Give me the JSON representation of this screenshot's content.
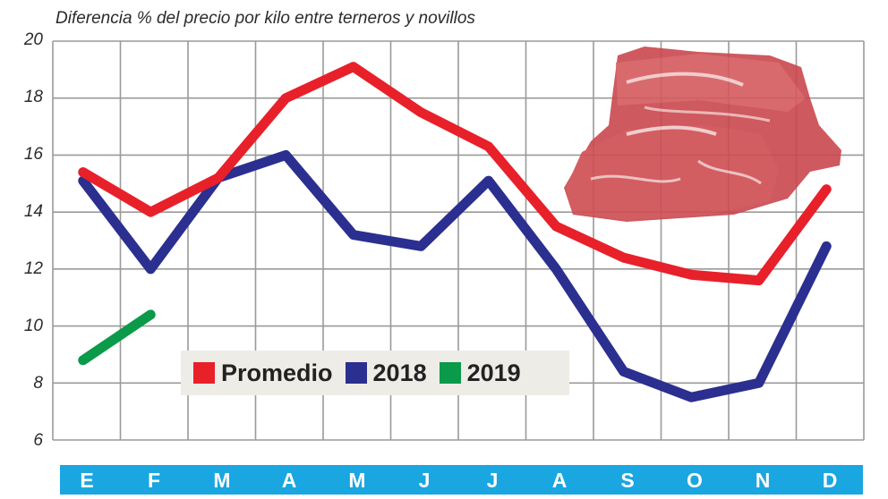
{
  "chart_data": {
    "type": "line",
    "title": "Diferencia % del precio por kilo entre terneros y novillos",
    "xlabel": "",
    "ylabel": "",
    "categories": [
      "E",
      "F",
      "M",
      "A",
      "M",
      "J",
      "J",
      "A",
      "S",
      "O",
      "N",
      "D"
    ],
    "yticks": [
      "20",
      "18",
      "16",
      "14",
      "12",
      "10",
      "8",
      "6"
    ],
    "ylim": [
      6,
      20
    ],
    "grid": true,
    "legend_position": "inside-bottom-center",
    "series": [
      {
        "name": "Promedio",
        "color": "#e8202a",
        "values": [
          15.4,
          14.0,
          15.2,
          18.0,
          19.1,
          17.5,
          16.3,
          13.5,
          12.4,
          11.8,
          11.6,
          14.8
        ]
      },
      {
        "name": "2018",
        "color": "#2b2f8f",
        "values": [
          15.1,
          12.0,
          15.2,
          16.0,
          13.2,
          12.8,
          15.1,
          12.0,
          8.4,
          7.5,
          8.0,
          12.8
        ]
      },
      {
        "name": "2019",
        "color": "#0a9a4a",
        "values": [
          8.8,
          10.4,
          null,
          null,
          null,
          null,
          null,
          null,
          null,
          null,
          null,
          null
        ]
      }
    ]
  },
  "header": {
    "title": "Diferencia % del precio por kilo entre terneros y novillos"
  },
  "legend": {
    "items": [
      {
        "label": "Promedio",
        "color": "#e8202a"
      },
      {
        "label": "2018",
        "color": "#2b2f8f"
      },
      {
        "label": "2019",
        "color": "#0a9a4a"
      }
    ]
  },
  "axis": {
    "months": [
      "E",
      "F",
      "M",
      "A",
      "M",
      "J",
      "J",
      "A",
      "S",
      "O",
      "N",
      "D"
    ],
    "yticks": [
      "20",
      "18",
      "16",
      "14",
      "12",
      "10",
      "8",
      "6"
    ],
    "month_bar_color": "#1aa6e0"
  },
  "decoration": {
    "image": "raw-beef-steaks-icon"
  }
}
